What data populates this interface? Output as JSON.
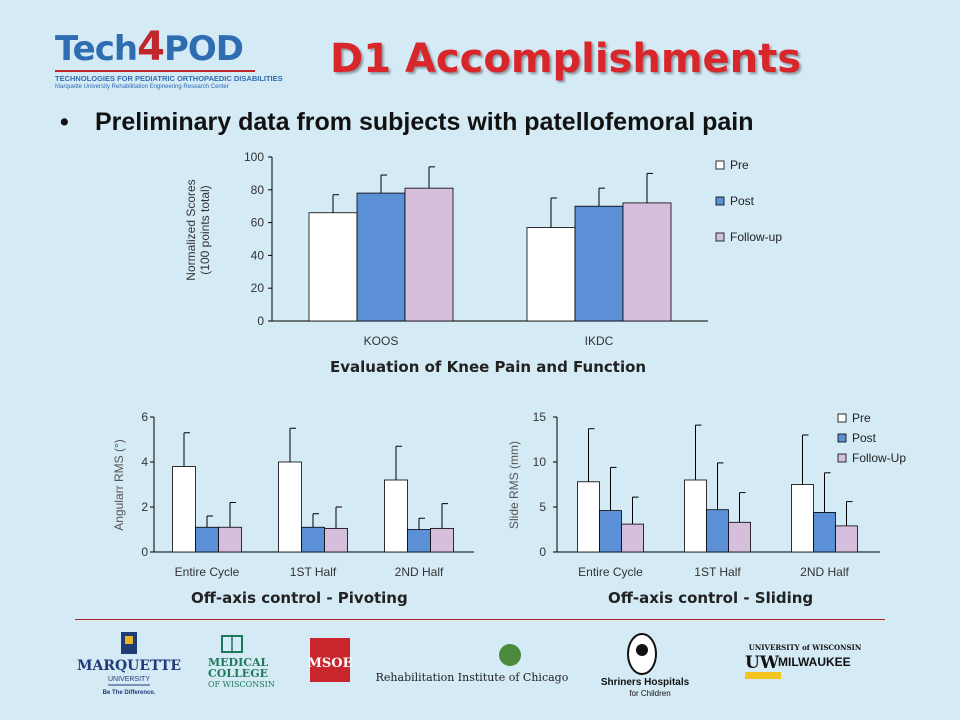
{
  "logo": {
    "brand_a": "Tech",
    "brand_b": "4",
    "brand_c": "POD",
    "line1": "TECHNOLOGIES FOR PEDIATRIC ORTHOPAEDIC DISABILITIES",
    "line2": "Marquette University Rehabilitation Engineering Research Center"
  },
  "slide": {
    "title": "D1 Accomplishments",
    "bullet": "Preliminary data from subjects with patellofemoral pain",
    "bullet_marker": "•"
  },
  "colors": {
    "title": "#d9262b",
    "pre": "#ffffff",
    "post": "#5b8fd6",
    "followup": "#d6bfdd",
    "background": "#d4eaf5"
  },
  "chart_data": [
    {
      "type": "bar",
      "caption": "Evaluation of Knee Pain and Function",
      "categories": [
        "KOOS",
        "IKDC"
      ],
      "series": [
        {
          "name": "Pre",
          "values": [
            66,
            57
          ],
          "errors": [
            11,
            18
          ]
        },
        {
          "name": "Post",
          "values": [
            78,
            70
          ],
          "errors": [
            11,
            11
          ]
        },
        {
          "name": "Follow-up",
          "values": [
            81,
            72
          ],
          "errors": [
            13,
            18
          ]
        }
      ],
      "ylabel_lines": [
        "Normalized Scores",
        "(100 points total)"
      ],
      "ylim": [
        0,
        100
      ],
      "yticks": [
        "0",
        "20",
        "40",
        "60",
        "80",
        "100"
      ],
      "legend": "right"
    },
    {
      "type": "bar",
      "caption": "Off-axis control - Pivoting",
      "categories": [
        "Entire Cycle",
        "1ST Half",
        "2ND Half"
      ],
      "series": [
        {
          "name": "Pre",
          "values": [
            3.8,
            4.0,
            3.2
          ],
          "errors": [
            1.5,
            1.5,
            1.5
          ]
        },
        {
          "name": "Post",
          "values": [
            1.1,
            1.1,
            1.0
          ],
          "errors": [
            0.5,
            0.6,
            0.5
          ]
        },
        {
          "name": "Follow-up",
          "values": [
            1.1,
            1.05,
            1.05
          ],
          "errors": [
            1.1,
            0.95,
            1.1
          ]
        }
      ],
      "ylabel": "Angularr RMS (°)",
      "ylim": [
        0,
        6
      ],
      "yticks": [
        "0",
        "2",
        "4",
        "6"
      ],
      "legend": "none"
    },
    {
      "type": "bar",
      "caption": "Off-axis control - Sliding",
      "categories": [
        "Entire Cycle",
        "1ST Half",
        "2ND Half"
      ],
      "series": [
        {
          "name": "Pre",
          "values": [
            7.8,
            8.0,
            7.5
          ],
          "errors": [
            5.9,
            6.1,
            5.5
          ]
        },
        {
          "name": "Post",
          "values": [
            4.6,
            4.7,
            4.4
          ],
          "errors": [
            4.8,
            5.2,
            4.4
          ]
        },
        {
          "name": "Follow-Up",
          "values": [
            3.1,
            3.3,
            2.9
          ],
          "errors": [
            3.0,
            3.3,
            2.7
          ]
        }
      ],
      "ylabel": "Slide RMS (mm)",
      "ylim": [
        0,
        15
      ],
      "yticks": [
        "0",
        "5",
        "10",
        "15"
      ],
      "legend": "top-right"
    }
  ],
  "sponsors": {
    "marquette_a": "MARQUETTE",
    "marquette_b": "UNIVERSITY",
    "marquette_c": "Be The Difference.",
    "mcw_a": "MEDICAL",
    "mcw_b": "COLLEGE",
    "mcw_c": "OF WISCONSIN",
    "msoe": "MSOE",
    "ric": "Rehabilitation Institute of Chicago",
    "shriners_a": "Shriners Hospitals",
    "shriners_b": "for Children",
    "uwm_a": "UNIVERSITY of WISCONSIN",
    "uwm_b": "UW",
    "uwm_c": "MILWAUKEE"
  }
}
